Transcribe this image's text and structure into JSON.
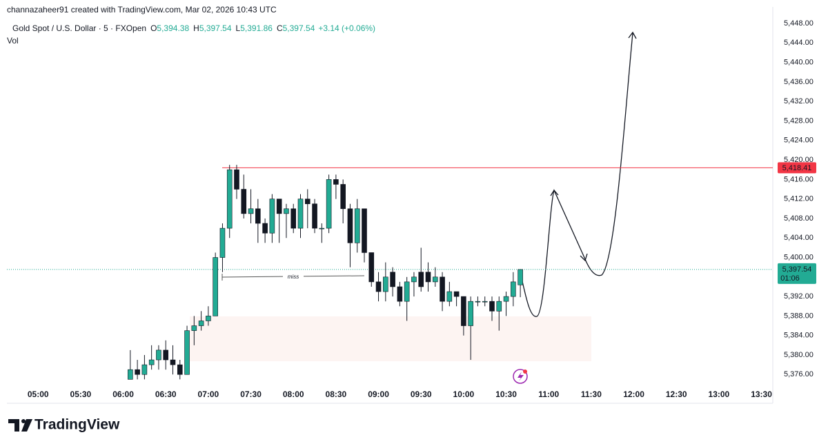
{
  "chart_data": {
    "type": "candlestick",
    "title": "channazaheer91 created with TradingView.com, Mar 02, 2026 10:43 UTC",
    "legend": {
      "symbol": "Gold Spot / U.S. Dollar · 5 · FXOpen",
      "items": [
        {
          "key": "O",
          "value": "5,394.38"
        },
        {
          "key": "H",
          "value": "5,397.54"
        },
        {
          "key": "L",
          "value": "5,391.86"
        },
        {
          "key": "C",
          "value": "5,397.54"
        }
      ],
      "change": "+3.14 (+0.06%)",
      "indicator": "Vol"
    },
    "x": [
      365,
      370,
      375,
      380,
      385,
      390,
      395,
      400,
      405,
      410,
      415,
      420,
      425,
      430,
      435,
      440,
      445,
      450,
      455,
      460,
      465,
      470,
      475,
      480,
      485,
      490,
      495,
      500,
      505,
      510,
      515,
      520,
      525,
      530,
      535,
      540,
      545,
      550,
      555,
      560,
      565,
      570,
      575,
      580,
      585,
      590,
      595,
      600,
      605,
      610,
      615,
      620,
      625,
      630,
      635,
      640
    ],
    "open": [
      5375,
      5377,
      5376,
      5378,
      5379,
      5381,
      5379,
      5378,
      5376,
      5385,
      5386,
      5387,
      5388,
      5400,
      5406,
      5418,
      5414,
      5409,
      5410,
      5407,
      5405,
      5412,
      5409,
      5410,
      5406,
      5412,
      5411,
      5406,
      5406,
      5416,
      5415,
      5410,
      5403,
      5410,
      5401,
      5395,
      5393,
      5397,
      5394,
      5391,
      5395,
      5397,
      5397,
      5395,
      5396,
      5391,
      5393,
      5392,
      5386,
      5391,
      5391,
      5391,
      5389,
      5391,
      5392,
      5394.38
    ],
    "high": [
      5381,
      5379,
      5380,
      5382,
      5382,
      5383,
      5382,
      5379,
      5386,
      5388,
      5389,
      5390,
      5401,
      5407,
      5419,
      5419,
      5417,
      5414,
      5412,
      5408,
      5413,
      5412,
      5411,
      5411,
      5413,
      5414,
      5412,
      5407,
      5417,
      5417,
      5416,
      5411,
      5412,
      5410,
      5401,
      5397,
      5399,
      5398,
      5395,
      5396,
      5397,
      5402,
      5399,
      5398,
      5397,
      5395,
      5393,
      5392,
      5392,
      5392,
      5392,
      5392,
      5392,
      5393,
      5397,
      5397.54
    ],
    "low": [
      5375,
      5375,
      5375,
      5377,
      5377,
      5377,
      5376,
      5375,
      5376,
      5382,
      5385,
      5386,
      5388,
      5397,
      5404,
      5412,
      5408,
      5407,
      5403,
      5403,
      5403,
      5403,
      5404,
      5405,
      5404,
      5406,
      5405,
      5403,
      5405,
      5412,
      5407,
      5398,
      5401,
      5399,
      5394,
      5391,
      5391,
      5392,
      5390,
      5387,
      5392,
      5393,
      5393,
      5394,
      5389,
      5390,
      5390,
      5384,
      5379,
      5390,
      5390,
      5387,
      5385,
      5388,
      5390,
      5391.86
    ],
    "close": [
      5377,
      5376,
      5378,
      5379,
      5381,
      5379,
      5378,
      5376,
      5385,
      5386,
      5387,
      5388,
      5400,
      5406,
      5418,
      5414,
      5409,
      5410,
      5407,
      5405,
      5412,
      5409,
      5410,
      5406,
      5412,
      5411,
      5406,
      5406,
      5416,
      5415,
      5410,
      5403,
      5410,
      5401,
      5395,
      5393,
      5396,
      5394,
      5391,
      5395,
      5396,
      5394,
      5395,
      5396,
      5391,
      5393,
      5392,
      5386,
      5391,
      5391,
      5391,
      5389,
      5391,
      5392,
      5395,
      5397.54
    ],
    "up_color": "#22ab94",
    "down_color": "#131722",
    "xlim": [
      278,
      818
    ],
    "xticks": [
      {
        "value": 300,
        "label": "05:00"
      },
      {
        "value": 330,
        "label": "05:30"
      },
      {
        "value": 360,
        "label": "06:00"
      },
      {
        "value": 390,
        "label": "06:30"
      },
      {
        "value": 420,
        "label": "07:00"
      },
      {
        "value": 450,
        "label": "07:30"
      },
      {
        "value": 480,
        "label": "08:00"
      },
      {
        "value": 510,
        "label": "08:30"
      },
      {
        "value": 540,
        "label": "09:00"
      },
      {
        "value": 570,
        "label": "09:30"
      },
      {
        "value": 600,
        "label": "10:00"
      },
      {
        "value": 630,
        "label": "10:30"
      },
      {
        "value": 660,
        "label": "11:00"
      },
      {
        "value": 690,
        "label": "11:30"
      },
      {
        "value": 720,
        "label": "12:00"
      },
      {
        "value": 750,
        "label": "12:30"
      },
      {
        "value": 780,
        "label": "13:00"
      },
      {
        "value": 810,
        "label": "13:30"
      }
    ],
    "ylim": [
      5370.1,
      5451.4
    ],
    "yticks": [
      {
        "value": 5376,
        "label": "5,376.00"
      },
      {
        "value": 5380,
        "label": "5,380.00"
      },
      {
        "value": 5384,
        "label": "5,384.00"
      },
      {
        "value": 5388,
        "label": "5,388.00"
      },
      {
        "value": 5392,
        "label": "5,392.00"
      },
      {
        "value": 5396,
        "label": "5,396.00"
      },
      {
        "value": 5400,
        "label": "5,400.00"
      },
      {
        "value": 5404,
        "label": "5,404.00"
      },
      {
        "value": 5408,
        "label": "5,408.00"
      },
      {
        "value": 5412,
        "label": "5,412.00"
      },
      {
        "value": 5416,
        "label": "5,416.00"
      },
      {
        "value": 5420,
        "label": "5,420.00"
      },
      {
        "value": 5424,
        "label": "5,424.00"
      },
      {
        "value": 5428,
        "label": "5,428.00"
      },
      {
        "value": 5432,
        "label": "5,432.00"
      },
      {
        "value": 5436,
        "label": "5,436.00"
      },
      {
        "value": 5440,
        "label": "5,440.00"
      },
      {
        "value": 5444,
        "label": "5,444.00"
      },
      {
        "value": 5448,
        "label": "5,448.00"
      }
    ],
    "grid": false,
    "price_line": {
      "value": 5418.41,
      "label": "5,418.41",
      "color": "#f23645"
    },
    "last_price": {
      "value": 5397.54,
      "label": "5,397.54",
      "countdown": "01:06",
      "color": "#22ab94"
    },
    "annotation": "miss",
    "brand": "TradingView"
  }
}
